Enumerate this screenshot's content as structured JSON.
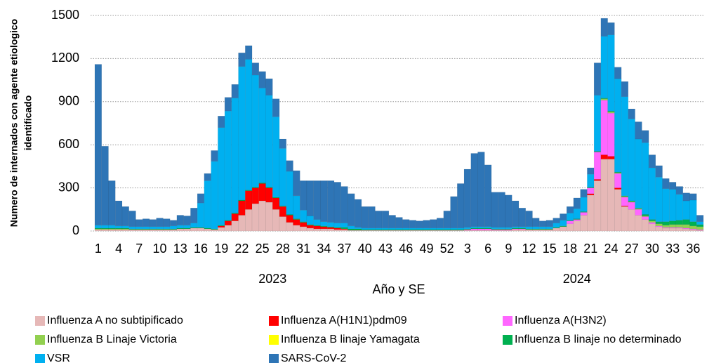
{
  "chart_data": {
    "type": "stacked_bar",
    "ylabel": [
      "Numero de internados con agente etiologico",
      "identificado"
    ],
    "xlabel": "Año y SE",
    "x_groups": [
      "2023",
      "2024"
    ],
    "categories": [
      "1",
      null,
      null,
      "4",
      null,
      null,
      "7",
      null,
      null,
      "10",
      null,
      null,
      "13",
      null,
      null,
      "16",
      null,
      null,
      "19",
      null,
      null,
      "22",
      null,
      null,
      "25",
      null,
      null,
      "28",
      null,
      null,
      "31",
      null,
      null,
      "34",
      null,
      null,
      "37",
      null,
      null,
      "40",
      null,
      null,
      "43",
      null,
      null,
      "46",
      null,
      null,
      "49",
      null,
      null,
      "52",
      null,
      null,
      "3",
      null,
      null,
      "6",
      null,
      null,
      "9",
      null,
      null,
      "12",
      null,
      null,
      "15",
      null,
      null,
      "18",
      null,
      null,
      "21",
      null,
      null,
      "24",
      null,
      null,
      "27",
      null,
      null,
      "30",
      null,
      null,
      "33",
      null,
      null,
      "36",
      null
    ],
    "ylim": [
      0,
      1500
    ],
    "yticks": [
      0,
      300,
      600,
      900,
      1200,
      1500
    ],
    "grid": true,
    "series": [
      {
        "name": "Influenza A no subtipificado",
        "color": "#e6b8b7",
        "values": [
          10,
          10,
          10,
          10,
          10,
          10,
          10,
          10,
          10,
          10,
          10,
          10,
          15,
          15,
          20,
          20,
          15,
          10,
          25,
          40,
          70,
          110,
          150,
          190,
          210,
          200,
          150,
          100,
          60,
          40,
          30,
          20,
          15,
          15,
          15,
          10,
          10,
          5,
          5,
          5,
          5,
          5,
          5,
          5,
          5,
          5,
          5,
          5,
          5,
          5,
          5,
          5,
          5,
          5,
          5,
          5,
          5,
          5,
          5,
          5,
          5,
          10,
          10,
          10,
          10,
          10,
          10,
          20,
          30,
          50,
          70,
          110,
          250,
          350,
          500,
          500,
          290,
          170,
          150,
          110,
          80,
          50,
          30,
          20,
          20,
          20,
          15,
          10,
          5
        ]
      },
      {
        "name": "Influenza A(H1N1)pdm09",
        "color": "#ff0000",
        "values": [
          0,
          0,
          0,
          0,
          0,
          0,
          0,
          0,
          0,
          0,
          0,
          0,
          0,
          0,
          0,
          0,
          0,
          0,
          10,
          30,
          50,
          100,
          130,
          110,
          120,
          100,
          80,
          70,
          50,
          40,
          30,
          20,
          20,
          15,
          10,
          10,
          5,
          0,
          0,
          0,
          0,
          0,
          0,
          0,
          0,
          0,
          0,
          0,
          0,
          0,
          0,
          0,
          0,
          0,
          0,
          0,
          0,
          0,
          0,
          0,
          0,
          0,
          0,
          0,
          0,
          0,
          0,
          0,
          0,
          0,
          0,
          0,
          10,
          10,
          30,
          20,
          10,
          5,
          0,
          0,
          0,
          0,
          0,
          0,
          0,
          0,
          0,
          0,
          0
        ]
      },
      {
        "name": "Influenza A(H3N2)",
        "color": "#ff66ff",
        "values": [
          0,
          0,
          0,
          0,
          0,
          0,
          0,
          0,
          0,
          0,
          0,
          0,
          0,
          0,
          0,
          0,
          0,
          0,
          0,
          0,
          0,
          0,
          0,
          0,
          0,
          0,
          0,
          0,
          0,
          0,
          0,
          0,
          0,
          0,
          0,
          0,
          0,
          0,
          0,
          0,
          0,
          0,
          0,
          0,
          0,
          0,
          0,
          0,
          0,
          0,
          0,
          0,
          0,
          0,
          5,
          10,
          10,
          10,
          5,
          5,
          5,
          5,
          5,
          0,
          0,
          0,
          0,
          0,
          0,
          20,
          10,
          20,
          40,
          190,
          380,
          300,
          100,
          60,
          50,
          40,
          20,
          10,
          5,
          5,
          5,
          5,
          5,
          5,
          5
        ]
      },
      {
        "name": "Influenza B Linaje Victoria",
        "color": "#92d050",
        "values": [
          5,
          5,
          5,
          5,
          5,
          0,
          0,
          0,
          0,
          0,
          0,
          0,
          0,
          0,
          0,
          0,
          0,
          0,
          0,
          0,
          0,
          0,
          0,
          0,
          0,
          0,
          0,
          0,
          0,
          0,
          0,
          0,
          0,
          0,
          0,
          0,
          0,
          0,
          0,
          0,
          0,
          0,
          0,
          0,
          0,
          0,
          0,
          0,
          0,
          0,
          0,
          0,
          0,
          0,
          0,
          0,
          0,
          0,
          0,
          0,
          0,
          0,
          0,
          0,
          0,
          0,
          0,
          0,
          0,
          0,
          0,
          0,
          0,
          0,
          10,
          10,
          5,
          5,
          5,
          5,
          5,
          10,
          15,
          15,
          20,
          20,
          25,
          20,
          20
        ]
      },
      {
        "name": "Influenza B linaje Yamagata",
        "color": "#ffff00",
        "values": [
          0,
          0,
          0,
          0,
          0,
          0,
          0,
          0,
          0,
          0,
          0,
          0,
          0,
          0,
          0,
          0,
          0,
          0,
          0,
          0,
          0,
          0,
          0,
          0,
          0,
          0,
          0,
          0,
          0,
          0,
          0,
          0,
          0,
          0,
          0,
          0,
          0,
          0,
          0,
          0,
          0,
          0,
          0,
          0,
          0,
          0,
          0,
          0,
          0,
          0,
          0,
          0,
          0,
          0,
          0,
          0,
          0,
          0,
          0,
          0,
          0,
          0,
          0,
          0,
          0,
          0,
          0,
          0,
          0,
          0,
          0,
          0,
          0,
          0,
          0,
          0,
          0,
          0,
          0,
          0,
          0,
          0,
          0,
          0,
          0,
          0,
          0,
          0,
          0
        ]
      },
      {
        "name": "Influenza B linaje no determinado",
        "color": "#00b050",
        "values": [
          5,
          5,
          5,
          5,
          5,
          5,
          5,
          5,
          5,
          5,
          5,
          5,
          5,
          5,
          5,
          5,
          5,
          5,
          5,
          5,
          5,
          5,
          5,
          5,
          5,
          5,
          5,
          5,
          5,
          5,
          5,
          5,
          5,
          5,
          5,
          5,
          10,
          10,
          10,
          5,
          5,
          5,
          5,
          5,
          5,
          5,
          5,
          5,
          5,
          5,
          5,
          5,
          5,
          5,
          5,
          5,
          5,
          5,
          5,
          5,
          5,
          5,
          5,
          5,
          5,
          5,
          5,
          5,
          5,
          5,
          5,
          5,
          5,
          5,
          5,
          5,
          5,
          5,
          5,
          5,
          10,
          10,
          15,
          25,
          25,
          30,
          35,
          30,
          15
        ]
      },
      {
        "name": "VSR",
        "color": "#00b0f0",
        "values": [
          20,
          20,
          20,
          15,
          15,
          15,
          15,
          15,
          15,
          15,
          15,
          20,
          20,
          20,
          30,
          170,
          330,
          470,
          680,
          760,
          800,
          930,
          910,
          780,
          660,
          640,
          560,
          400,
          300,
          160,
          80,
          60,
          40,
          30,
          30,
          30,
          30,
          20,
          10,
          10,
          10,
          10,
          10,
          10,
          10,
          10,
          10,
          10,
          10,
          10,
          10,
          10,
          10,
          10,
          10,
          10,
          10,
          10,
          10,
          10,
          10,
          10,
          10,
          15,
          15,
          15,
          15,
          30,
          40,
          50,
          70,
          100,
          90,
          390,
          430,
          530,
          650,
          690,
          570,
          480,
          500,
          360,
          310,
          230,
          220,
          180,
          130,
          150,
          20
        ]
      },
      {
        "name": "SARS-CoV-2",
        "color": "#2e75b6",
        "values": [
          1120,
          550,
          310,
          175,
          135,
          110,
          50,
          55,
          50,
          60,
          55,
          40,
          70,
          65,
          105,
          65,
          50,
          75,
          80,
          95,
          95,
          95,
          95,
          85,
          115,
          115,
          125,
          65,
          75,
          175,
          205,
          245,
          270,
          285,
          290,
          285,
          255,
          225,
          195,
          150,
          150,
          120,
          120,
          90,
          75,
          60,
          55,
          50,
          55,
          60,
          70,
          120,
          220,
          310,
          405,
          510,
          520,
          430,
          245,
          245,
          225,
          180,
          130,
          110,
          60,
          40,
          45,
          35,
          45,
          45,
          75,
          55,
          45,
          225,
          125,
          85,
          80,
          105,
          70,
          120,
          85,
          90,
          80,
          70,
          50,
          55,
          55,
          45,
          45
        ]
      }
    ]
  }
}
